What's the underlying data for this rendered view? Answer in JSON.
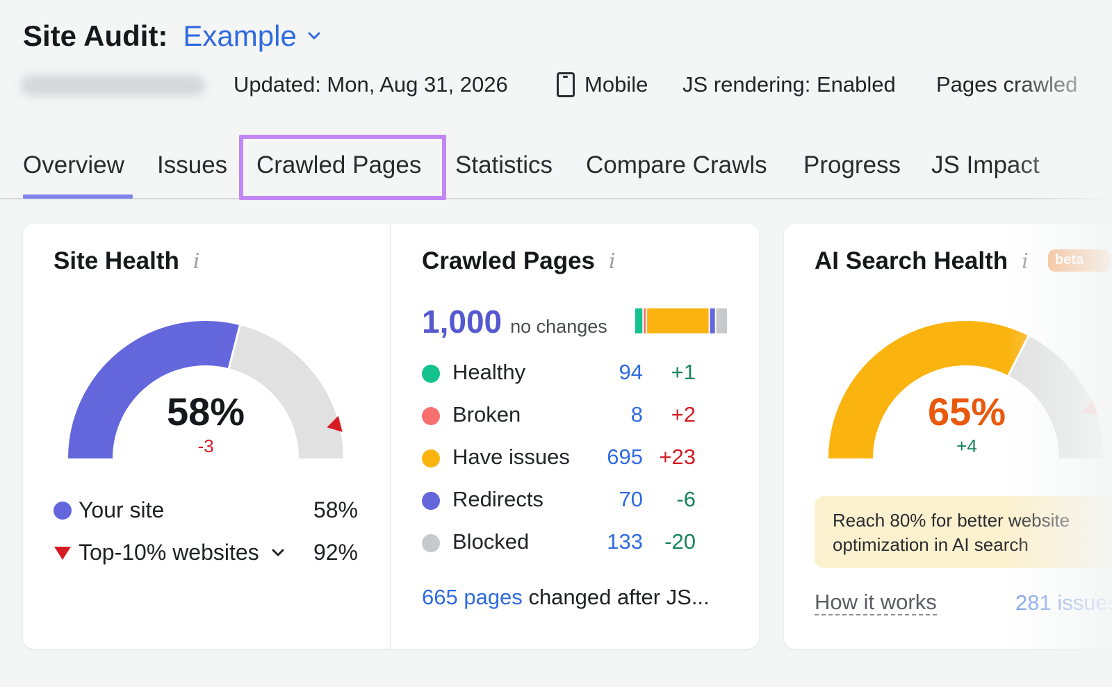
{
  "header": {
    "title": "Site Audit:",
    "project": "Example",
    "updated": "Updated: Mon, Aug 31, 2026",
    "device": "Mobile",
    "js_rendering": "JS rendering: Enabled",
    "pages_crawled": "Pages crawled"
  },
  "tabs": [
    {
      "label": "Overview"
    },
    {
      "label": "Issues"
    },
    {
      "label": "Crawled Pages"
    },
    {
      "label": "Statistics"
    },
    {
      "label": "Compare Crawls"
    },
    {
      "label": "Progress"
    },
    {
      "label": "JS Impact"
    }
  ],
  "site_health": {
    "title": "Site Health",
    "value_pct": 58,
    "value": "58%",
    "delta": "-3",
    "top10_marker_pct": 92,
    "legend": [
      {
        "label": "Your site",
        "value": "58%"
      },
      {
        "label": "Top-10% websites",
        "value": "92%"
      }
    ]
  },
  "crawled_pages": {
    "title": "Crawled Pages",
    "total": "1,000",
    "subtitle": "no changes",
    "rows": [
      {
        "label": "Healthy",
        "count": "94",
        "change": "+1",
        "color": "#13c28d"
      },
      {
        "label": "Broken",
        "count": "8",
        "change": "+2",
        "color": "#f86f70"
      },
      {
        "label": "Have issues",
        "count": "695",
        "change": "+23",
        "color": "#fbb40f"
      },
      {
        "label": "Redirects",
        "count": "70",
        "change": "-6",
        "color": "#6466db"
      },
      {
        "label": "Blocked",
        "count": "133",
        "change": "-20",
        "color": "#c8c9cb"
      }
    ],
    "footer_link": "665 pages",
    "footer_text": "changed after JS..."
  },
  "ai_search_health": {
    "title": "AI Search Health",
    "badge": "beta",
    "value_pct": 65,
    "value": "65%",
    "delta": "+4",
    "tip": "Reach 80% for better website optimization in AI search",
    "how_it_works": "How it works",
    "issues_link": "281 issues"
  },
  "colors": {
    "accent": "#2f6ae0",
    "site_health_fill": "#6466db",
    "ai_fill": "#fbb40f",
    "gauge_track": "#e1e1e2",
    "highlight": "#c287f5"
  },
  "icons": [
    "chevron-down-icon",
    "phone-icon",
    "info-icon",
    "triangle-marker-icon"
  ]
}
